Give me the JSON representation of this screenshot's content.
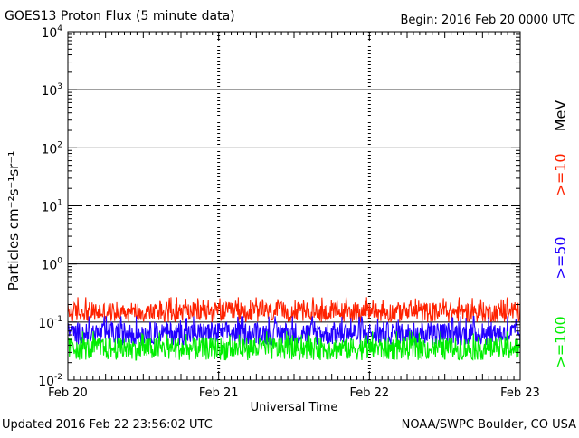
{
  "header": {
    "title": "GOES13 Proton Flux (5 minute data)",
    "begin": "Begin: 2016 Feb 20 0000 UTC"
  },
  "footer": {
    "updated": "Updated 2016 Feb 22 23:56:02 UTC",
    "credit": "NOAA/SWPC Boulder, CO USA"
  },
  "chart_data": {
    "type": "line",
    "title": "GOES13 Proton Flux (5 minute data)",
    "xlabel": "Universal Time",
    "ylabel": "Particles cm⁻²s⁻¹sr⁻¹",
    "yscale": "log",
    "ylim": [
      0.01,
      10000
    ],
    "xlim": [
      "2016-02-20",
      "2016-02-23"
    ],
    "x_ticks": [
      "Feb 20",
      "Feb 21",
      "Feb 22",
      "Feb 23"
    ],
    "y_ticks": [
      {
        "base": "10",
        "exp": "4"
      },
      {
        "base": "10",
        "exp": "3"
      },
      {
        "base": "10",
        "exp": "2"
      },
      {
        "base": "10",
        "exp": "1"
      },
      {
        "base": "10",
        "exp": "0"
      },
      {
        "base": "10",
        "exp": "-1"
      },
      {
        "base": "10",
        "exp": "-2"
      }
    ],
    "grid": true,
    "reference_lines": [
      {
        "value": 10,
        "style": "dashed"
      }
    ],
    "legend_unit": "MeV",
    "series": [
      {
        "name": ">=10",
        "color": "#ff2200",
        "typical_low": 0.1,
        "typical_high": 0.22
      },
      {
        "name": ">=50",
        "color": "#2200ff",
        "typical_low": 0.04,
        "typical_high": 0.1
      },
      {
        "name": ">=100",
        "color": "#00ee00",
        "typical_low": 0.022,
        "typical_high": 0.055
      }
    ]
  }
}
